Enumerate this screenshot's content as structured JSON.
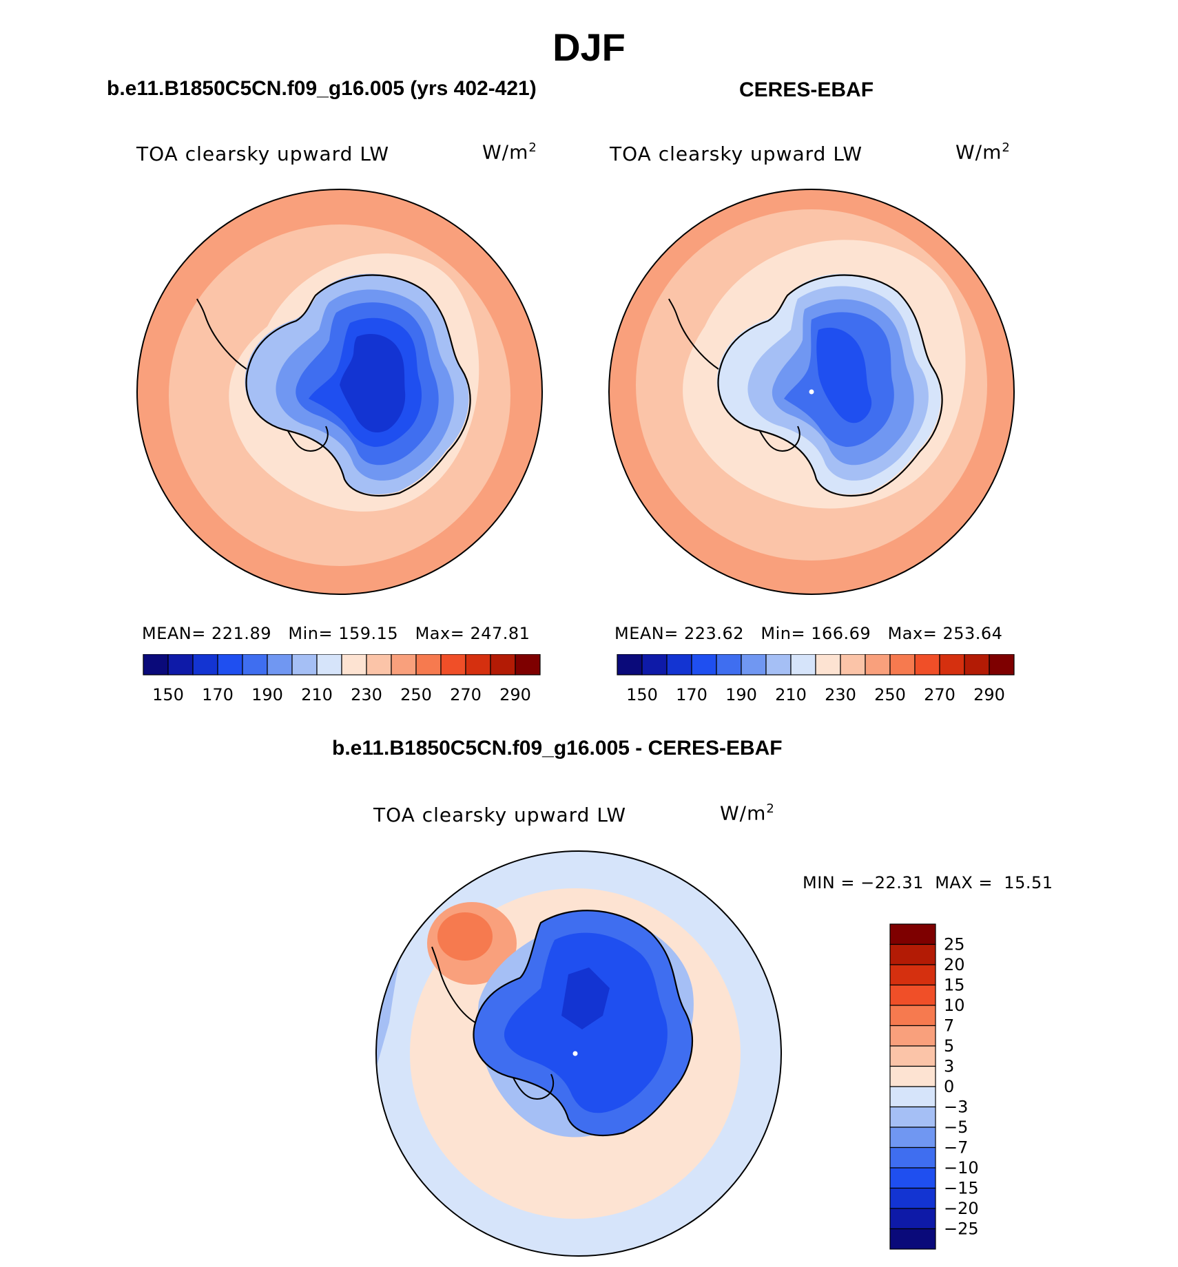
{
  "season": "DJF",
  "panels": [
    {
      "case_title": "b.e11.B1850C5CN.f09_g16.005 (yrs 402-421)",
      "variable": "TOA clearsky upward LW",
      "units": "W/m",
      "units_exp": "2",
      "stats": {
        "mean_label": "MEAN=",
        "mean": "221.89",
        "min_label": "Min=",
        "min": "159.15",
        "max_label": "Max=",
        "max": "247.81"
      }
    },
    {
      "case_title": "CERES-EBAF",
      "variable": "TOA clearsky upward LW",
      "units": "W/m",
      "units_exp": "2",
      "stats": {
        "mean_label": "MEAN=",
        "mean": "223.62",
        "min_label": "Min=",
        "min": "166.69",
        "max_label": "Max=",
        "max": "253.64"
      }
    }
  ],
  "diff_panel": {
    "case_title": "b.e11.B1850C5CN.f09_g16.005 - CERES-EBAF",
    "variable": "TOA clearsky upward LW",
    "units": "W/m",
    "units_exp": "2",
    "minmax": {
      "min_label": "MIN =",
      "min": "−22.31",
      "max_label": "MAX =",
      "max": "15.51"
    }
  },
  "colorbar_abs": {
    "colors": [
      "#0a0a7a",
      "#0e1aa8",
      "#1334d2",
      "#1f4ff0",
      "#3f6ef0",
      "#7097f2",
      "#a5bff5",
      "#d6e4fa",
      "#fde3d2",
      "#fbc4a8",
      "#f9a07c",
      "#f67a4f",
      "#f04f28",
      "#d5300f",
      "#b31b05",
      "#7e0000"
    ],
    "tick_labels": [
      "150",
      "170",
      "190",
      "210",
      "230",
      "250",
      "270",
      "290"
    ]
  },
  "colorbar_diff": {
    "colors": [
      "#7e0000",
      "#b31b05",
      "#d5300f",
      "#f04f28",
      "#f67a4f",
      "#f9a07c",
      "#fbc4a8",
      "#fde3d2",
      "#d6e4fa",
      "#a5bff5",
      "#7097f2",
      "#3f6ef0",
      "#1f4ff0",
      "#1334d2",
      "#0e1aa8",
      "#0a0a7a"
    ],
    "tick_labels": [
      "25",
      "20",
      "15",
      "10",
      "7",
      "5",
      "3",
      "0",
      "−3",
      "−5",
      "−7",
      "−10",
      "−15",
      "−20",
      "−25"
    ]
  },
  "chart_data": [
    {
      "type": "heatmap",
      "projection": "south polar stereographic",
      "title": "TOA clearsky upward LW",
      "subtitle": "b.e11.B1850C5CN.f09_g16.005 (yrs 402-421)",
      "units": "W/m2",
      "summary": {
        "mean": 221.89,
        "min": 159.15,
        "max": 247.81
      },
      "contour_levels": [
        150,
        160,
        170,
        180,
        190,
        200,
        210,
        220,
        230,
        240,
        250,
        260,
        270,
        280,
        290
      ],
      "zones": [
        {
          "region": "outer ocean ring",
          "value": 245
        },
        {
          "region": "mid ocean",
          "value": 235
        },
        {
          "region": "sea-ice belt",
          "value": 225
        },
        {
          "region": "coastal Antarctica",
          "value": 205
        },
        {
          "region": "east Antarctic slope",
          "value": 185
        },
        {
          "region": "east Antarctic plateau",
          "value": 165
        }
      ]
    },
    {
      "type": "heatmap",
      "projection": "south polar stereographic",
      "title": "TOA clearsky upward LW",
      "subtitle": "CERES-EBAF",
      "units": "W/m2",
      "summary": {
        "mean": 223.62,
        "min": 166.69,
        "max": 253.64
      },
      "contour_levels": [
        150,
        160,
        170,
        180,
        190,
        200,
        210,
        220,
        230,
        240,
        250,
        260,
        270,
        280,
        290
      ],
      "zones": [
        {
          "region": "outer ocean ring",
          "value": 245
        },
        {
          "region": "mid ocean",
          "value": 235
        },
        {
          "region": "sea-ice belt",
          "value": 225
        },
        {
          "region": "coastal Antarctica",
          "value": 210
        },
        {
          "region": "east Antarctic slope",
          "value": 195
        },
        {
          "region": "east Antarctic plateau",
          "value": 175
        }
      ]
    },
    {
      "type": "heatmap",
      "projection": "south polar stereographic",
      "title": "TOA clearsky upward LW",
      "subtitle": "b.e11.B1850C5CN.f09_g16.005 - CERES-EBAF",
      "units": "W/m2",
      "summary": {
        "min": -22.31,
        "max": 15.51
      },
      "contour_levels": [
        -25,
        -20,
        -15,
        -10,
        -7,
        -5,
        -3,
        0,
        3,
        5,
        7,
        10,
        15,
        20,
        25
      ],
      "zones": [
        {
          "region": "Southern Ocean",
          "value": 2
        },
        {
          "region": "outer ring",
          "value": -2
        },
        {
          "region": "Weddell/Antarctic Peninsula",
          "value": 8
        },
        {
          "region": "Antarctic interior",
          "value": -15
        }
      ]
    }
  ]
}
